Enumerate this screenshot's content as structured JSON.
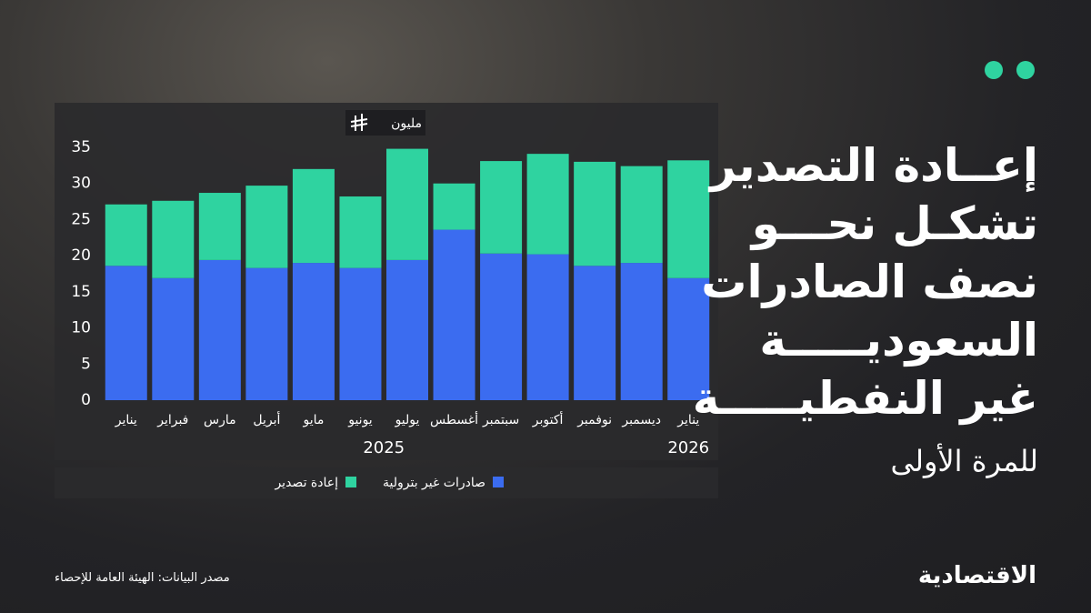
{
  "brand": "الاقتصادية",
  "chart_data": {
    "type": "stacked-bar",
    "title": [
      "إعــادة التصدير",
      "تشكـل نحـــو",
      "نصف الصادرات",
      "السعوديـــــة",
      "غير النفطيـــــة"
    ],
    "subtitle": "للمرة الأولى",
    "source": "مصدر البيانات: الهيئة العامة للإحصاء",
    "unit": "مليون",
    "categories": [
      "يناير",
      "فبراير",
      "مارس",
      "أبريل",
      "مايو",
      "يونيو",
      "يوليو",
      "أغسطس",
      "سبتمبر",
      "أكتوبر",
      "نوفمبر",
      "ديسمبر",
      "يناير"
    ],
    "years": [
      "2025",
      "2026"
    ],
    "series": [
      {
        "name": "صادرات غير بترولية",
        "color": "#3b6cf0",
        "values": [
          18.6,
          16.9,
          19.4,
          18.3,
          19.0,
          18.3,
          19.4,
          23.6,
          20.3,
          20.2,
          18.6,
          19.0,
          16.9
        ]
      },
      {
        "name": "إعادة تصدير",
        "color": "#2fd3a0",
        "values": [
          8.5,
          10.7,
          9.3,
          11.4,
          13.0,
          9.9,
          15.4,
          6.4,
          12.8,
          13.9,
          14.4,
          13.4,
          16.3
        ]
      }
    ],
    "ylim": [
      0,
      35
    ],
    "yticks": [
      0,
      5,
      10,
      15,
      20,
      25,
      30,
      35
    ],
    "grid": false
  }
}
